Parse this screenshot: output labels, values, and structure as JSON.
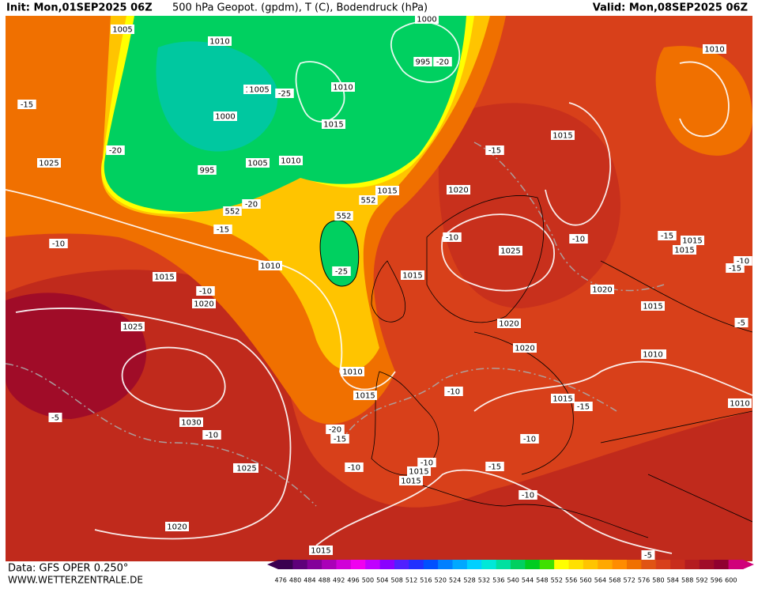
{
  "header": {
    "init": "Init: Mon,01SEP2025 06Z",
    "title": "500 hPa Geopot. (gpdm), T (C), Bodendruck (hPa)",
    "valid": "Valid: Mon,08SEP2025 06Z"
  },
  "footer": {
    "source": "Data: GFS OPER 0.250°",
    "site": "WWW.WETTERZENTRALE.DE"
  },
  "map": {
    "labels": [
      "1005",
      "1010",
      "1000",
      "995",
      "-20",
      "1010",
      "1005",
      "-25",
      "1010",
      "1015",
      "1000",
      "995",
      "1005",
      "1010",
      "1015",
      "-15",
      "-20",
      "1025",
      "552",
      "-20",
      "552",
      "552",
      "-15",
      "-10",
      "1010",
      "-25",
      "1015",
      "1015",
      "-10",
      "1020",
      "1025",
      "-5",
      "1030",
      "-10",
      "1010",
      "1015",
      "-20",
      "-15",
      "-10",
      "1025",
      "1020",
      "1015",
      "1020",
      "-10",
      "1025",
      "-15",
      "1020",
      "1020",
      "-10",
      "1015",
      "1020",
      "1015",
      "1010",
      "-15",
      "1015",
      "-10",
      "-15",
      "-10",
      "1015",
      "1015",
      "-10",
      "-15",
      "1010",
      "-5",
      "1015",
      "1015",
      "-10",
      "1010",
      "1025",
      "-15",
      "1010",
      "-10",
      "-5"
    ]
  },
  "colorbar": {
    "labels": [
      "476",
      "480",
      "484",
      "488",
      "492",
      "496",
      "500",
      "504",
      "508",
      "512",
      "516",
      "520",
      "524",
      "528",
      "532",
      "536",
      "540",
      "544",
      "548",
      "552",
      "556",
      "560",
      "564",
      "568",
      "572",
      "576",
      "580",
      "584",
      "588",
      "592",
      "596",
      "600"
    ],
    "colors": [
      "#3a0050",
      "#5e007a",
      "#84009a",
      "#aa00b8",
      "#d000d8",
      "#f000f0",
      "#c000ff",
      "#8a00ff",
      "#5020ff",
      "#2030ff",
      "#0050ff",
      "#0080ff",
      "#00a8ff",
      "#00d0ff",
      "#00e8d8",
      "#00e0a0",
      "#00d060",
      "#00cc20",
      "#40e000",
      "#ffff00",
      "#ffe000",
      "#ffc400",
      "#ffa800",
      "#ff8c00",
      "#f07000",
      "#e05414",
      "#d8401a",
      "#c82c1c",
      "#b41c20",
      "#a00c28",
      "#900030",
      "#d0007a"
    ]
  }
}
